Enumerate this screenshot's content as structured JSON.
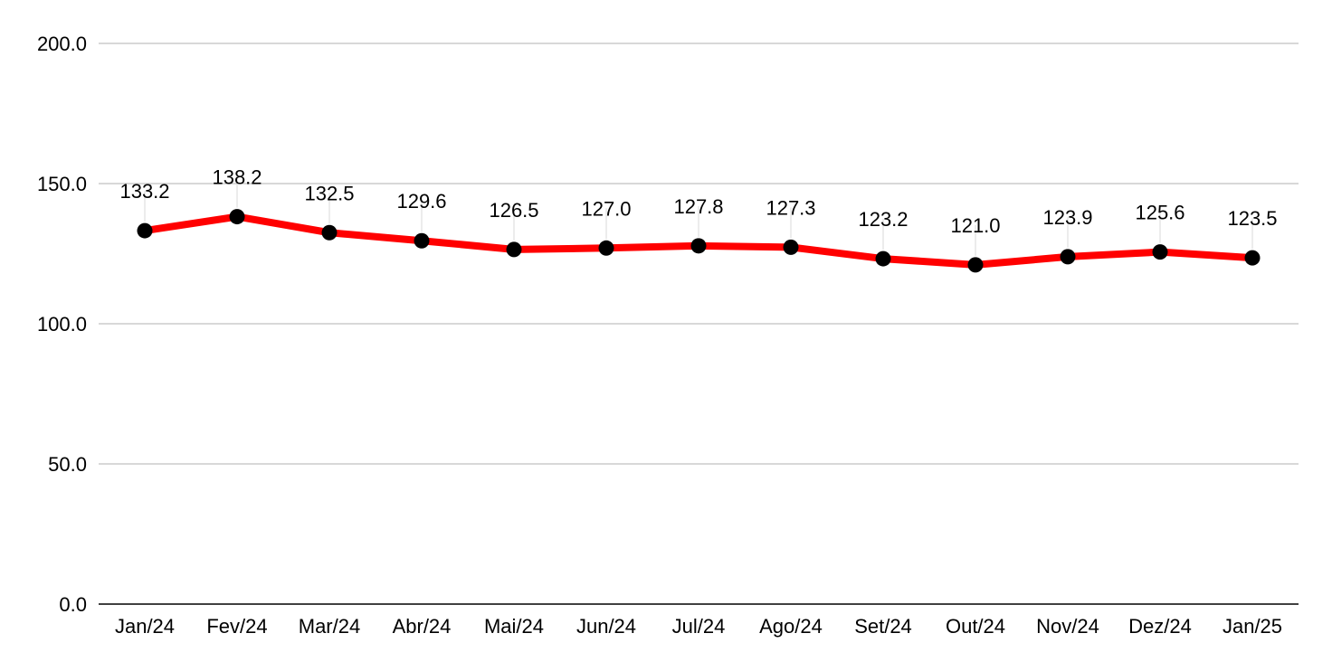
{
  "chart_data": {
    "type": "line",
    "categories": [
      "Jan/24",
      "Fev/24",
      "Mar/24",
      "Abr/24",
      "Mai/24",
      "Jun/24",
      "Jul/24",
      "Ago/24",
      "Set/24",
      "Out/24",
      "Nov/24",
      "Dez/24",
      "Jan/25"
    ],
    "series": [
      {
        "values": [
          133.2,
          138.2,
          132.5,
          129.6,
          126.5,
          127.0,
          127.8,
          127.3,
          123.2,
          121.0,
          123.9,
          125.6,
          123.5
        ],
        "labels": [
          "133.2",
          "138.2",
          "132.5",
          "129.6",
          "126.5",
          "127.0",
          "127.8",
          "127.3",
          "123.2",
          "121.0",
          "123.9",
          "125.6",
          "123.5"
        ],
        "color": "#ff0000",
        "marker_color": "#000000"
      }
    ],
    "yticks": [
      0,
      50,
      100,
      150,
      200
    ],
    "ytick_labels": [
      "0.0",
      "50.0",
      "100.0",
      "150.0",
      "200.0"
    ],
    "ylim": [
      0,
      200
    ],
    "grid": true,
    "gridline_color": "#cccccc",
    "axis_color": "#000000",
    "title": "",
    "xlabel": "",
    "ylabel": ""
  }
}
